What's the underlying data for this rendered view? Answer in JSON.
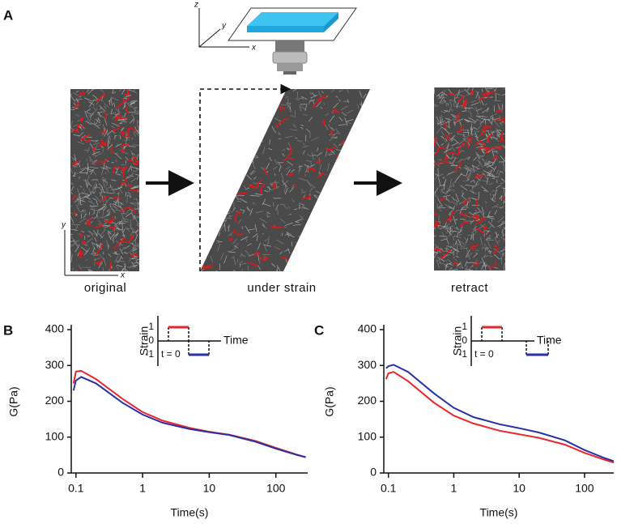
{
  "panel_a": {
    "label": "A",
    "captions": [
      "original",
      "under strain",
      "retract"
    ],
    "stage_axis_labels": {
      "z": "z",
      "y": "y",
      "x": "x"
    },
    "image_axis_labels": {
      "y": "y",
      "x": "x"
    }
  },
  "chart_data": [
    {
      "type": "line",
      "panel_label": "B",
      "xlabel": "Time(s)",
      "ylabel": "G(Pa)",
      "xscale": "log",
      "xlim": [
        0.085,
        300
      ],
      "ylim": [
        0,
        400
      ],
      "xticks": [
        0.1,
        1,
        10,
        100
      ],
      "yticks": [
        0,
        100,
        200,
        300,
        400
      ],
      "x": [
        0.092,
        0.1,
        0.12,
        0.2,
        0.5,
        1,
        2,
        5,
        10,
        20,
        50,
        100,
        200,
        280
      ],
      "series": [
        {
          "color": "#e8262b",
          "values": [
            250,
            283,
            285,
            262,
            207,
            170,
            146,
            126,
            115,
            107,
            89,
            70,
            52,
            44
          ]
        },
        {
          "color": "#2a2fa8",
          "values": [
            230,
            258,
            268,
            250,
            196,
            163,
            140,
            123,
            114,
            106,
            87,
            68,
            51,
            44
          ]
        }
      ],
      "inset": {
        "xlabel": "Time",
        "ylabel": "Strain",
        "yticks": [
          1,
          0,
          -1
        ],
        "annotation": "t = 0",
        "pulses": [
          {
            "color": "#e8262b",
            "level": 1
          },
          {
            "color": "#2a2fa8",
            "level": -1
          }
        ]
      }
    },
    {
      "type": "line",
      "panel_label": "C",
      "xlabel": "Time(s)",
      "ylabel": "G(Pa)",
      "xscale": "log",
      "xlim": [
        0.085,
        280
      ],
      "ylim": [
        0,
        400
      ],
      "xticks": [
        0.1,
        1,
        10,
        100
      ],
      "yticks": [
        0,
        100,
        200,
        300,
        400
      ],
      "x": [
        0.092,
        0.1,
        0.12,
        0.2,
        0.5,
        1,
        2,
        5,
        10,
        20,
        50,
        100,
        200,
        280
      ],
      "series": [
        {
          "color": "#e8262b",
          "values": [
            262,
            278,
            282,
            256,
            196,
            160,
            138,
            118,
            108,
            98,
            79,
            56,
            37,
            29
          ]
        },
        {
          "color": "#2a2fa8",
          "values": [
            292,
            298,
            302,
            282,
            222,
            182,
            156,
            136,
            125,
            113,
            91,
            64,
            42,
            33
          ]
        }
      ],
      "inset": {
        "xlabel": "Time",
        "ylabel": "Strain",
        "yticks": [
          1,
          0,
          -1
        ],
        "annotation": "t = 0",
        "pulses": [
          {
            "color": "#e8262b",
            "level": 1
          },
          {
            "color": "#2a2fa8",
            "level": -1
          }
        ]
      }
    }
  ]
}
